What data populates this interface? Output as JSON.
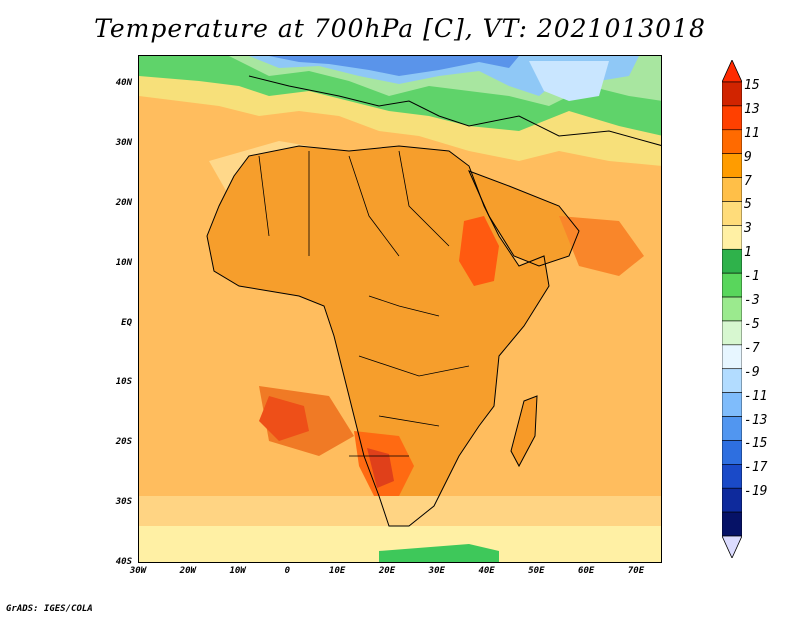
{
  "title": "Temperature at 700hPa [C], VT: 2021013018",
  "credit": "GrADS: IGES/COLA",
  "lat_labels": [
    "40N",
    "30N",
    "20N",
    "10N",
    "EQ",
    "10S",
    "20S",
    "30S",
    "40S"
  ],
  "lon_labels": [
    "30W",
    "20W",
    "10W",
    "0",
    "10E",
    "20E",
    "30E",
    "40E",
    "50E",
    "60E",
    "70E"
  ],
  "colorbar": {
    "labels": [
      "15",
      "13",
      "11",
      "9",
      "7",
      "5",
      "3",
      "1",
      "-1",
      "-3",
      "-5",
      "-7",
      "-9",
      "-11",
      "-13",
      "-15",
      "-17",
      "-19"
    ],
    "colors": [
      "#d12400",
      "#ff4000",
      "#ff6a00",
      "#ff9c00",
      "#ffbf48",
      "#ffdc7a",
      "#fff0a4",
      "#2fb24b",
      "#59d65c",
      "#9bea8e",
      "#d7f7d0",
      "#e7f6ff",
      "#b2dcff",
      "#7fbcfb",
      "#5196f0",
      "#2e6fe0",
      "#1a4ac8",
      "#0e2a9c",
      "#061266"
    ],
    "top_color": "#ff2a00",
    "bottom_color": "#dcdcff"
  },
  "map": {
    "ocean_base": "#ffc468",
    "land_base": "#f7a230"
  }
}
